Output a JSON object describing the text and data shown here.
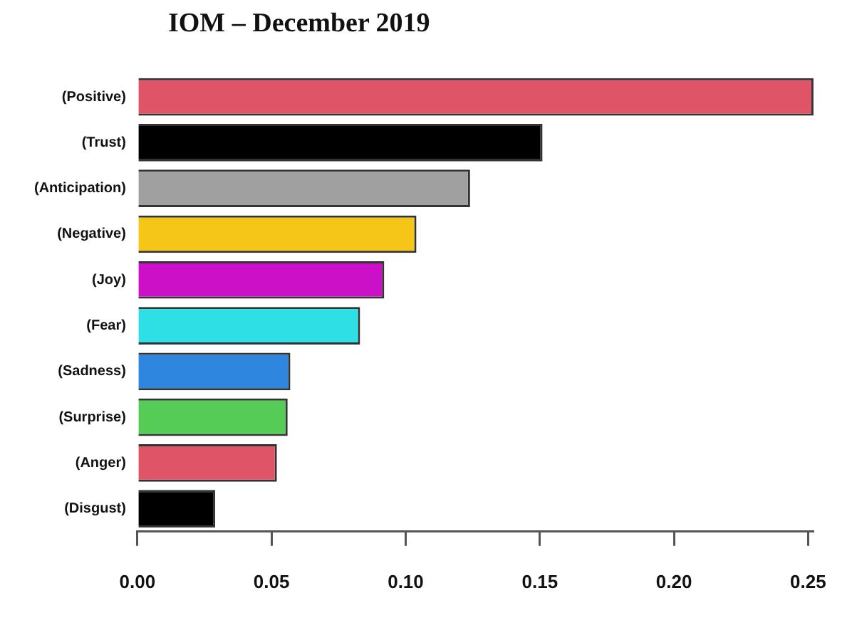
{
  "chart_data": {
    "type": "bar",
    "orientation": "horizontal",
    "title": "IOM – December 2019",
    "categories": [
      "(Positive)",
      "(Trust)",
      "(Anticipation)",
      "(Negative)",
      "(Joy)",
      "(Fear)",
      "(Sadness)",
      "(Surprise)",
      "(Anger)",
      "(Disgust)"
    ],
    "values": [
      0.252,
      0.151,
      0.124,
      0.104,
      0.092,
      0.083,
      0.057,
      0.056,
      0.052,
      0.029
    ],
    "colors": [
      "#e05468",
      "#000000",
      "#a0a0a0",
      "#f5c518",
      "#cc10c8",
      "#2ee0e6",
      "#2e86de",
      "#55cc55",
      "#e05468",
      "#000000"
    ],
    "xlim": [
      0,
      0.252
    ],
    "xticks": [
      {
        "value": 0,
        "label": "0.00"
      },
      {
        "value": 0.05,
        "label": "0.05"
      },
      {
        "value": 0.1,
        "label": "0.10"
      },
      {
        "value": 0.15,
        "label": "0.15"
      },
      {
        "value": 0.2,
        "label": "0.20"
      },
      {
        "value": 0.25,
        "label": "0.25"
      }
    ]
  }
}
